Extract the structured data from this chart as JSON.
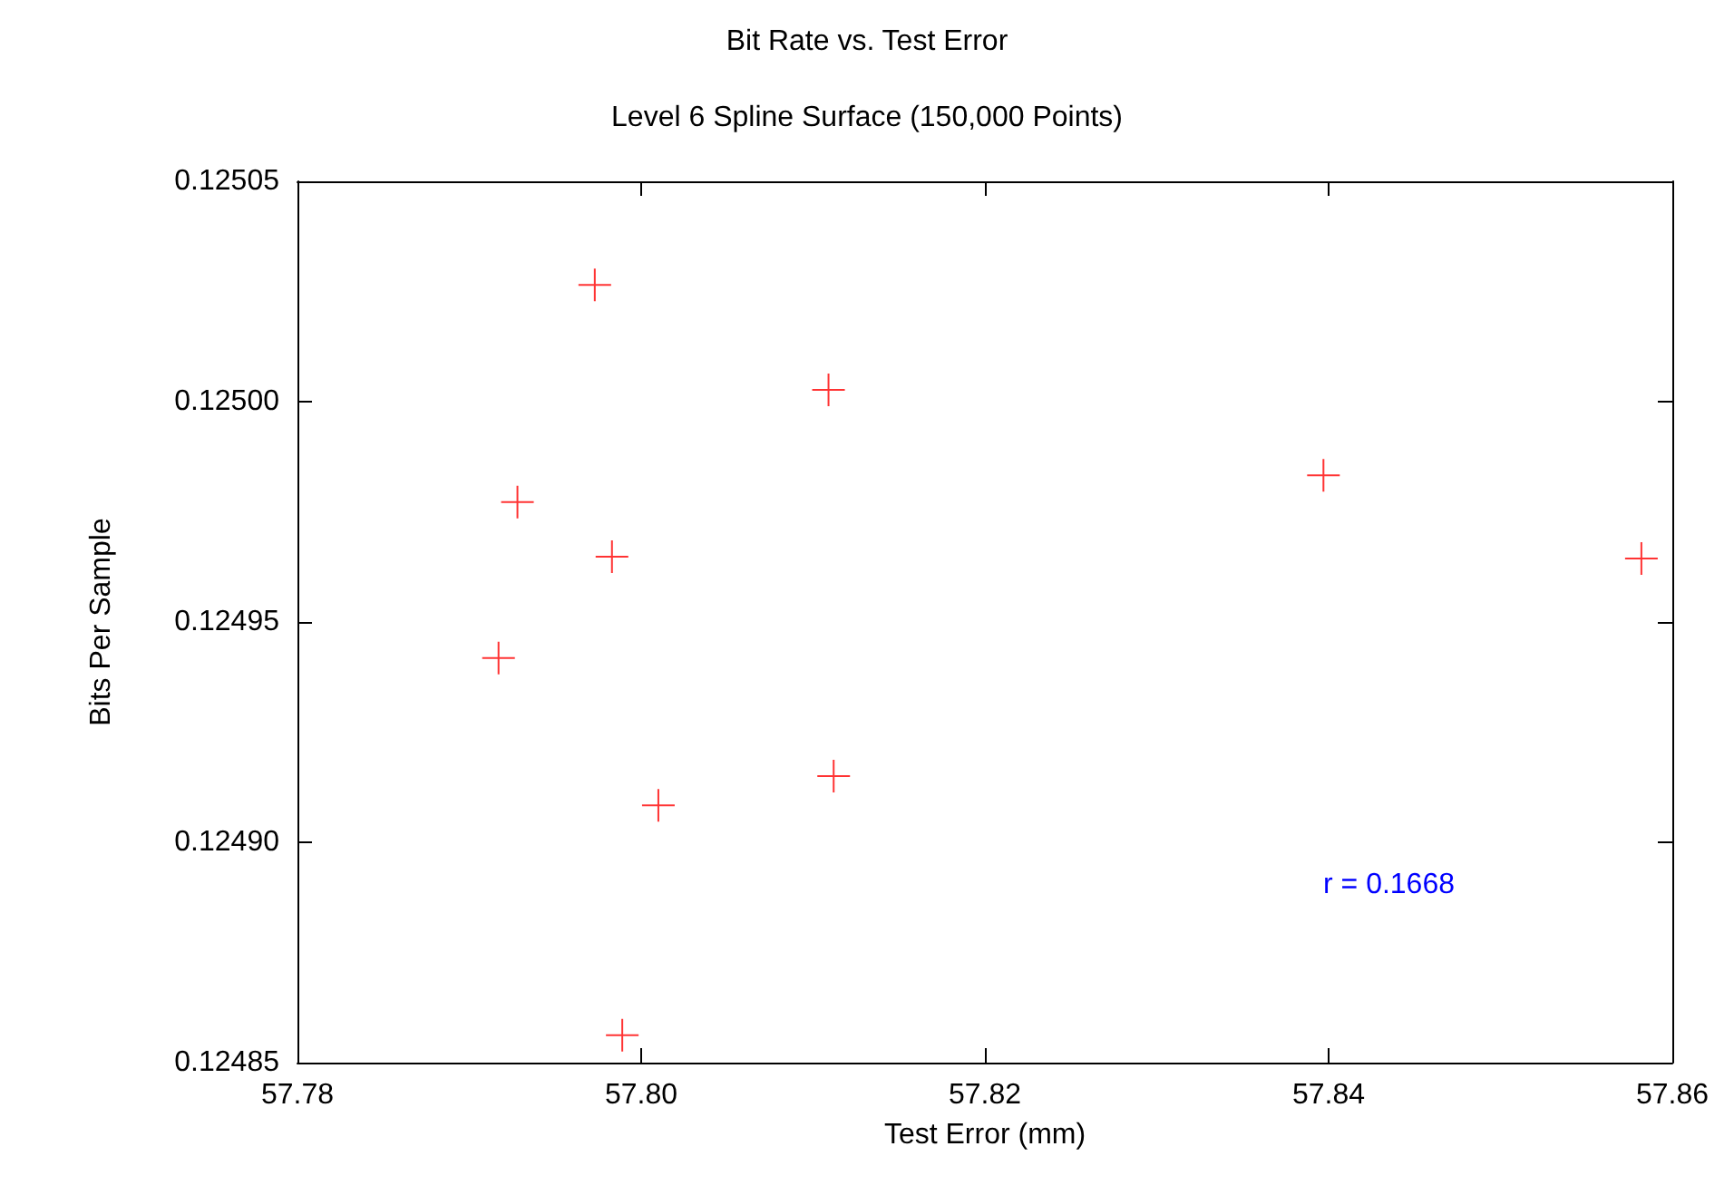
{
  "chart_data": {
    "type": "scatter",
    "title": "Bit Rate vs. Test Error",
    "subtitle": "Level 6 Spline Surface (150,000 Points)",
    "xlabel": "Test Error (mm)",
    "ylabel": "Bits Per Sample",
    "x": [
      57.7973,
      57.8109,
      57.7928,
      57.7983,
      57.8397,
      57.8582,
      57.7917,
      57.801,
      57.8112,
      57.7989
    ],
    "series": [
      {
        "color": "#ff0000",
        "values": [
          0.1250265,
          0.1250027,
          0.1249772,
          0.1249648,
          0.1249833,
          0.1249644,
          0.1249418,
          0.1249084,
          0.124915,
          0.1248562
        ]
      }
    ],
    "xlim": [
      57.78,
      57.86
    ],
    "xticks": [
      {
        "value": 57.78,
        "label": "57.78"
      },
      {
        "value": 57.8,
        "label": "57.80"
      },
      {
        "value": 57.82,
        "label": "57.82"
      },
      {
        "value": 57.84,
        "label": "57.84"
      },
      {
        "value": 57.86,
        "label": "57.86"
      }
    ],
    "ylim": [
      0.12485,
      0.12505
    ],
    "yticks": [
      {
        "value": 0.12485,
        "label": "0.12485"
      },
      {
        "value": 0.1249,
        "label": "0.12490"
      },
      {
        "value": 0.12495,
        "label": "0.12495"
      },
      {
        "value": 0.125,
        "label": "0.12500"
      },
      {
        "value": 0.12505,
        "label": "0.12505"
      }
    ],
    "annotations": [
      "r = 0.1668"
    ],
    "grid": false,
    "marker": "cross"
  }
}
